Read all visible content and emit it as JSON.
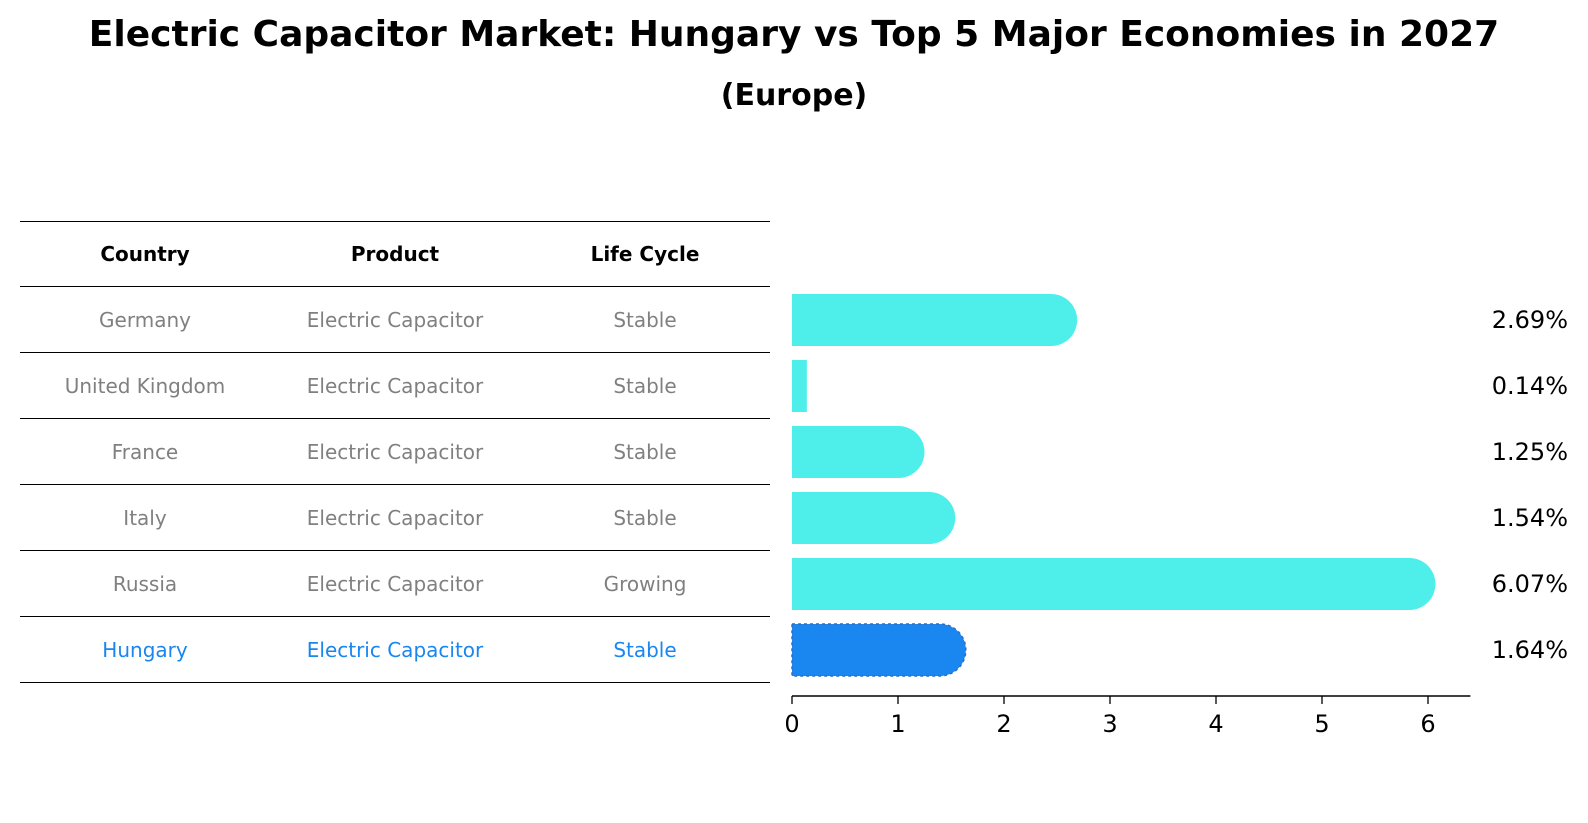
{
  "title": "Electric Capacitor Market: Hungary vs Top 5 Major Economies in 2027",
  "subtitle": "(Europe)",
  "table": {
    "headers": [
      "Country",
      "Product",
      "Life Cycle"
    ],
    "rows": [
      {
        "country": "Germany",
        "product": "Electric Capacitor",
        "life_cycle": "Stable"
      },
      {
        "country": "United Kingdom",
        "product": "Electric Capacitor",
        "life_cycle": "Stable"
      },
      {
        "country": "France",
        "product": "Electric Capacitor",
        "life_cycle": "Stable"
      },
      {
        "country": "Italy",
        "product": "Electric Capacitor",
        "life_cycle": "Stable"
      },
      {
        "country": "Russia",
        "product": "Electric Capacitor",
        "life_cycle": "Growing"
      },
      {
        "country": "Hungary",
        "product": "Electric Capacitor",
        "life_cycle": "Stable"
      }
    ]
  },
  "colors": {
    "bar": "#4eeeea",
    "highlight": "#1a86f0",
    "muted_text": "#808080"
  },
  "chart_data": {
    "type": "bar",
    "orientation": "horizontal",
    "categories": [
      "Germany",
      "United Kingdom",
      "France",
      "Italy",
      "Russia",
      "Hungary"
    ],
    "values": [
      2.69,
      0.14,
      1.25,
      1.54,
      6.07,
      1.64
    ],
    "value_labels": [
      "2.69%",
      "0.14%",
      "1.25%",
      "1.54%",
      "6.07%",
      "1.64%"
    ],
    "highlight_index": 5,
    "xticks": [
      "0",
      "1",
      "2",
      "3",
      "4",
      "5",
      "6"
    ],
    "xlim": [
      0,
      6.4
    ],
    "grid": false
  }
}
